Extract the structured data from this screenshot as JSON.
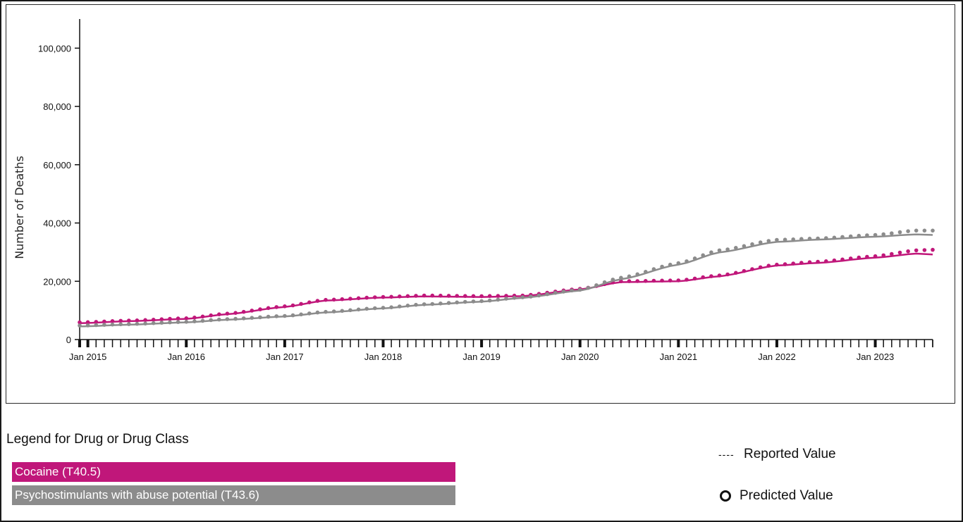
{
  "chart_data": {
    "type": "line",
    "title": "",
    "xlabel": "",
    "ylabel": "Number of Deaths",
    "ylim": [
      0,
      110000
    ],
    "yticks": [
      0,
      20000,
      40000,
      60000,
      80000,
      100000
    ],
    "ytick_labels": [
      "0",
      "20,000",
      "40,000",
      "60,000",
      "80,000",
      "100,000"
    ],
    "xlim": [
      "2014-12",
      "2023-08"
    ],
    "xtick_labels": [
      "Jan 2015",
      "Jan 2016",
      "Jan 2017",
      "Jan 2018",
      "Jan 2019",
      "Jan 2020",
      "Jan 2021",
      "Jan 2022",
      "Jan 2023"
    ],
    "grid": false,
    "series": [
      {
        "name": "Cocaine (T40.5)",
        "color": "#c0177a",
        "reported": {
          "x": [
            "2014-12",
            "2015-06",
            "2016-01",
            "2016-06",
            "2017-01",
            "2017-06",
            "2018-01",
            "2018-06",
            "2019-01",
            "2019-06",
            "2020-01",
            "2020-06",
            "2021-01",
            "2021-06",
            "2022-01",
            "2022-06",
            "2023-01",
            "2023-06",
            "2023-08"
          ],
          "y": [
            5600,
            6300,
            7100,
            8700,
            11200,
            13400,
            14400,
            14800,
            14600,
            14900,
            17200,
            19700,
            20000,
            21700,
            25400,
            26300,
            28100,
            29500,
            29200
          ]
        },
        "predicted": {
          "x": [
            "2014-12",
            "2015-06",
            "2016-01",
            "2016-06",
            "2017-01",
            "2017-06",
            "2018-01",
            "2018-06",
            "2019-01",
            "2019-06",
            "2020-01",
            "2020-06",
            "2021-01",
            "2021-06",
            "2022-01",
            "2022-06",
            "2023-01",
            "2023-06",
            "2023-08"
          ],
          "y": [
            5900,
            6500,
            7300,
            8900,
            11400,
            13600,
            14600,
            15100,
            14900,
            15100,
            17400,
            20000,
            20300,
            22000,
            25700,
            26700,
            28600,
            30600,
            30800
          ]
        }
      },
      {
        "name": "Psychostimulants with abuse potential (T43.6)",
        "color": "#8c8c8c",
        "reported": {
          "x": [
            "2014-12",
            "2015-06",
            "2016-01",
            "2016-06",
            "2017-01",
            "2017-06",
            "2018-01",
            "2018-06",
            "2019-01",
            "2019-06",
            "2020-01",
            "2020-06",
            "2021-01",
            "2021-06",
            "2022-01",
            "2022-06",
            "2023-01",
            "2023-06",
            "2023-08"
          ],
          "y": [
            4500,
            5100,
            5900,
            6800,
            7900,
            9300,
            10700,
            11900,
            13000,
            14300,
            16800,
            20700,
            25700,
            29900,
            33500,
            34300,
            35300,
            36100,
            35900
          ]
        },
        "predicted": {
          "x": [
            "2014-12",
            "2015-06",
            "2016-01",
            "2016-06",
            "2017-01",
            "2017-06",
            "2018-01",
            "2018-06",
            "2019-01",
            "2019-06",
            "2020-01",
            "2020-06",
            "2021-01",
            "2021-06",
            "2022-01",
            "2022-06",
            "2023-01",
            "2023-06",
            "2023-08"
          ],
          "y": [
            4800,
            5300,
            6100,
            7000,
            8100,
            9500,
            10900,
            12100,
            13200,
            14500,
            17100,
            21200,
            26200,
            30600,
            34200,
            34700,
            35900,
            37400,
            37400
          ]
        }
      }
    ]
  },
  "legend": {
    "title": "Legend for Drug or Drug Class",
    "items": [
      {
        "label": "Cocaine (T40.5)",
        "color": "#c0177a"
      },
      {
        "label": "Psychostimulants with abuse potential (T43.6)",
        "color": "#8c8c8c"
      }
    ],
    "reported_symbol": "----",
    "reported_label": "Reported Value",
    "predicted_label": "Predicted Value"
  }
}
